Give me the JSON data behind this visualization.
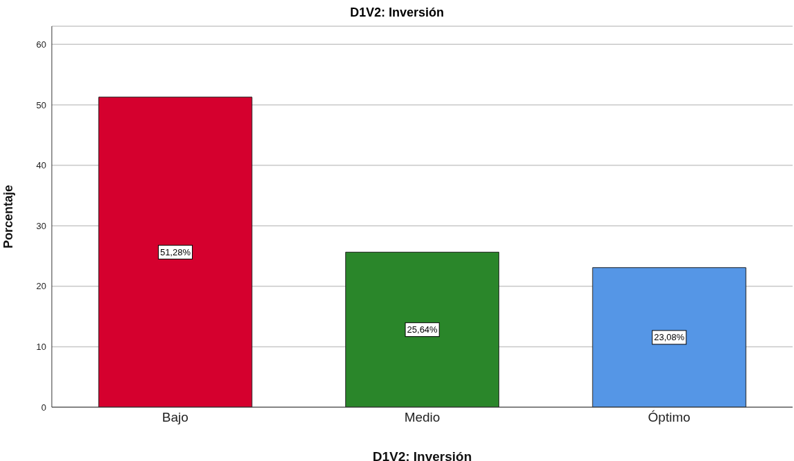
{
  "chart_data": {
    "type": "bar",
    "title": "D1V2: Inversión",
    "xlabel": "D1V2: Inversión",
    "ylabel": "Porcentaje",
    "categories": [
      "Bajo",
      "Medio",
      "Óptimo"
    ],
    "values": [
      51.28,
      25.64,
      23.08
    ],
    "colors": [
      "#d5002e",
      "#2a862a",
      "#5596e6"
    ],
    "value_labels": [
      "51,28%",
      "25,64%",
      "23,08%"
    ],
    "ylim": [
      0,
      63
    ],
    "yticks": [
      0,
      10,
      20,
      30,
      40,
      50,
      60
    ],
    "grid": "y"
  }
}
